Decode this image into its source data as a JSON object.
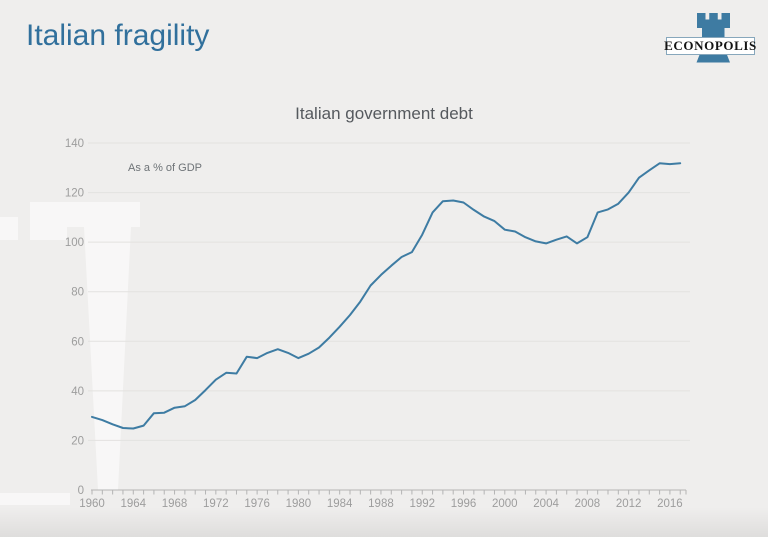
{
  "page": {
    "title": "Italian fragility"
  },
  "logo": {
    "name": "ECONOPOLIS",
    "tower_color": "#3e7ba2",
    "icon": "rook-icon"
  },
  "colors": {
    "background": "#efeeed",
    "title_blue": "#31709c",
    "line_blue": "#3e7ca3",
    "grid": "#e3e2e0",
    "axis": "#b4b4b4",
    "tick_label": "#9d9d9d"
  },
  "chart_data": {
    "type": "line",
    "title": "Italian government debt",
    "annotation": "As a % of GDP",
    "xlabel": "",
    "ylabel": "",
    "x_range": [
      1960,
      2017
    ],
    "ylim": [
      0,
      140
    ],
    "grid": "horizontal",
    "legend": "none",
    "y_ticks": [
      0,
      20,
      40,
      60,
      80,
      100,
      120,
      140
    ],
    "x_tick_labels": [
      "1960",
      "1964",
      "1968",
      "1972",
      "1976",
      "1980",
      "1984",
      "1988",
      "1992",
      "1996",
      "2000",
      "2004",
      "2008",
      "2012",
      "2016"
    ],
    "series": [
      {
        "name": "Italian government debt (% of GDP)",
        "color": "#3e7ca3",
        "x": [
          1960,
          1961,
          1962,
          1963,
          1964,
          1965,
          1966,
          1967,
          1968,
          1969,
          1970,
          1971,
          1972,
          1973,
          1974,
          1975,
          1976,
          1977,
          1978,
          1979,
          1980,
          1981,
          1982,
          1983,
          1984,
          1985,
          1986,
          1987,
          1988,
          1989,
          1990,
          1991,
          1992,
          1993,
          1994,
          1995,
          1996,
          1997,
          1998,
          1999,
          2000,
          2001,
          2002,
          2003,
          2004,
          2005,
          2006,
          2007,
          2008,
          2009,
          2010,
          2011,
          2012,
          2013,
          2014,
          2015,
          2016,
          2017
        ],
        "values": [
          29.5,
          28.2,
          26.5,
          25.0,
          24.8,
          26.0,
          31.0,
          31.2,
          33.2,
          33.8,
          36.3,
          40.3,
          44.5,
          47.3,
          47.0,
          53.8,
          53.2,
          55.3,
          56.8,
          55.3,
          53.2,
          55.0,
          57.5,
          61.5,
          65.9,
          70.6,
          76.0,
          82.5,
          86.8,
          90.5,
          94.0,
          96.0,
          103.0,
          112.0,
          116.5,
          116.8,
          116.0,
          113.0,
          110.3,
          108.5,
          105.0,
          104.3,
          102.0,
          100.3,
          99.5,
          101.0,
          102.3,
          99.5,
          102.0,
          112.0,
          113.2,
          115.5,
          120.0,
          126.0,
          129.0,
          131.8,
          131.5,
          131.8
        ]
      }
    ]
  }
}
